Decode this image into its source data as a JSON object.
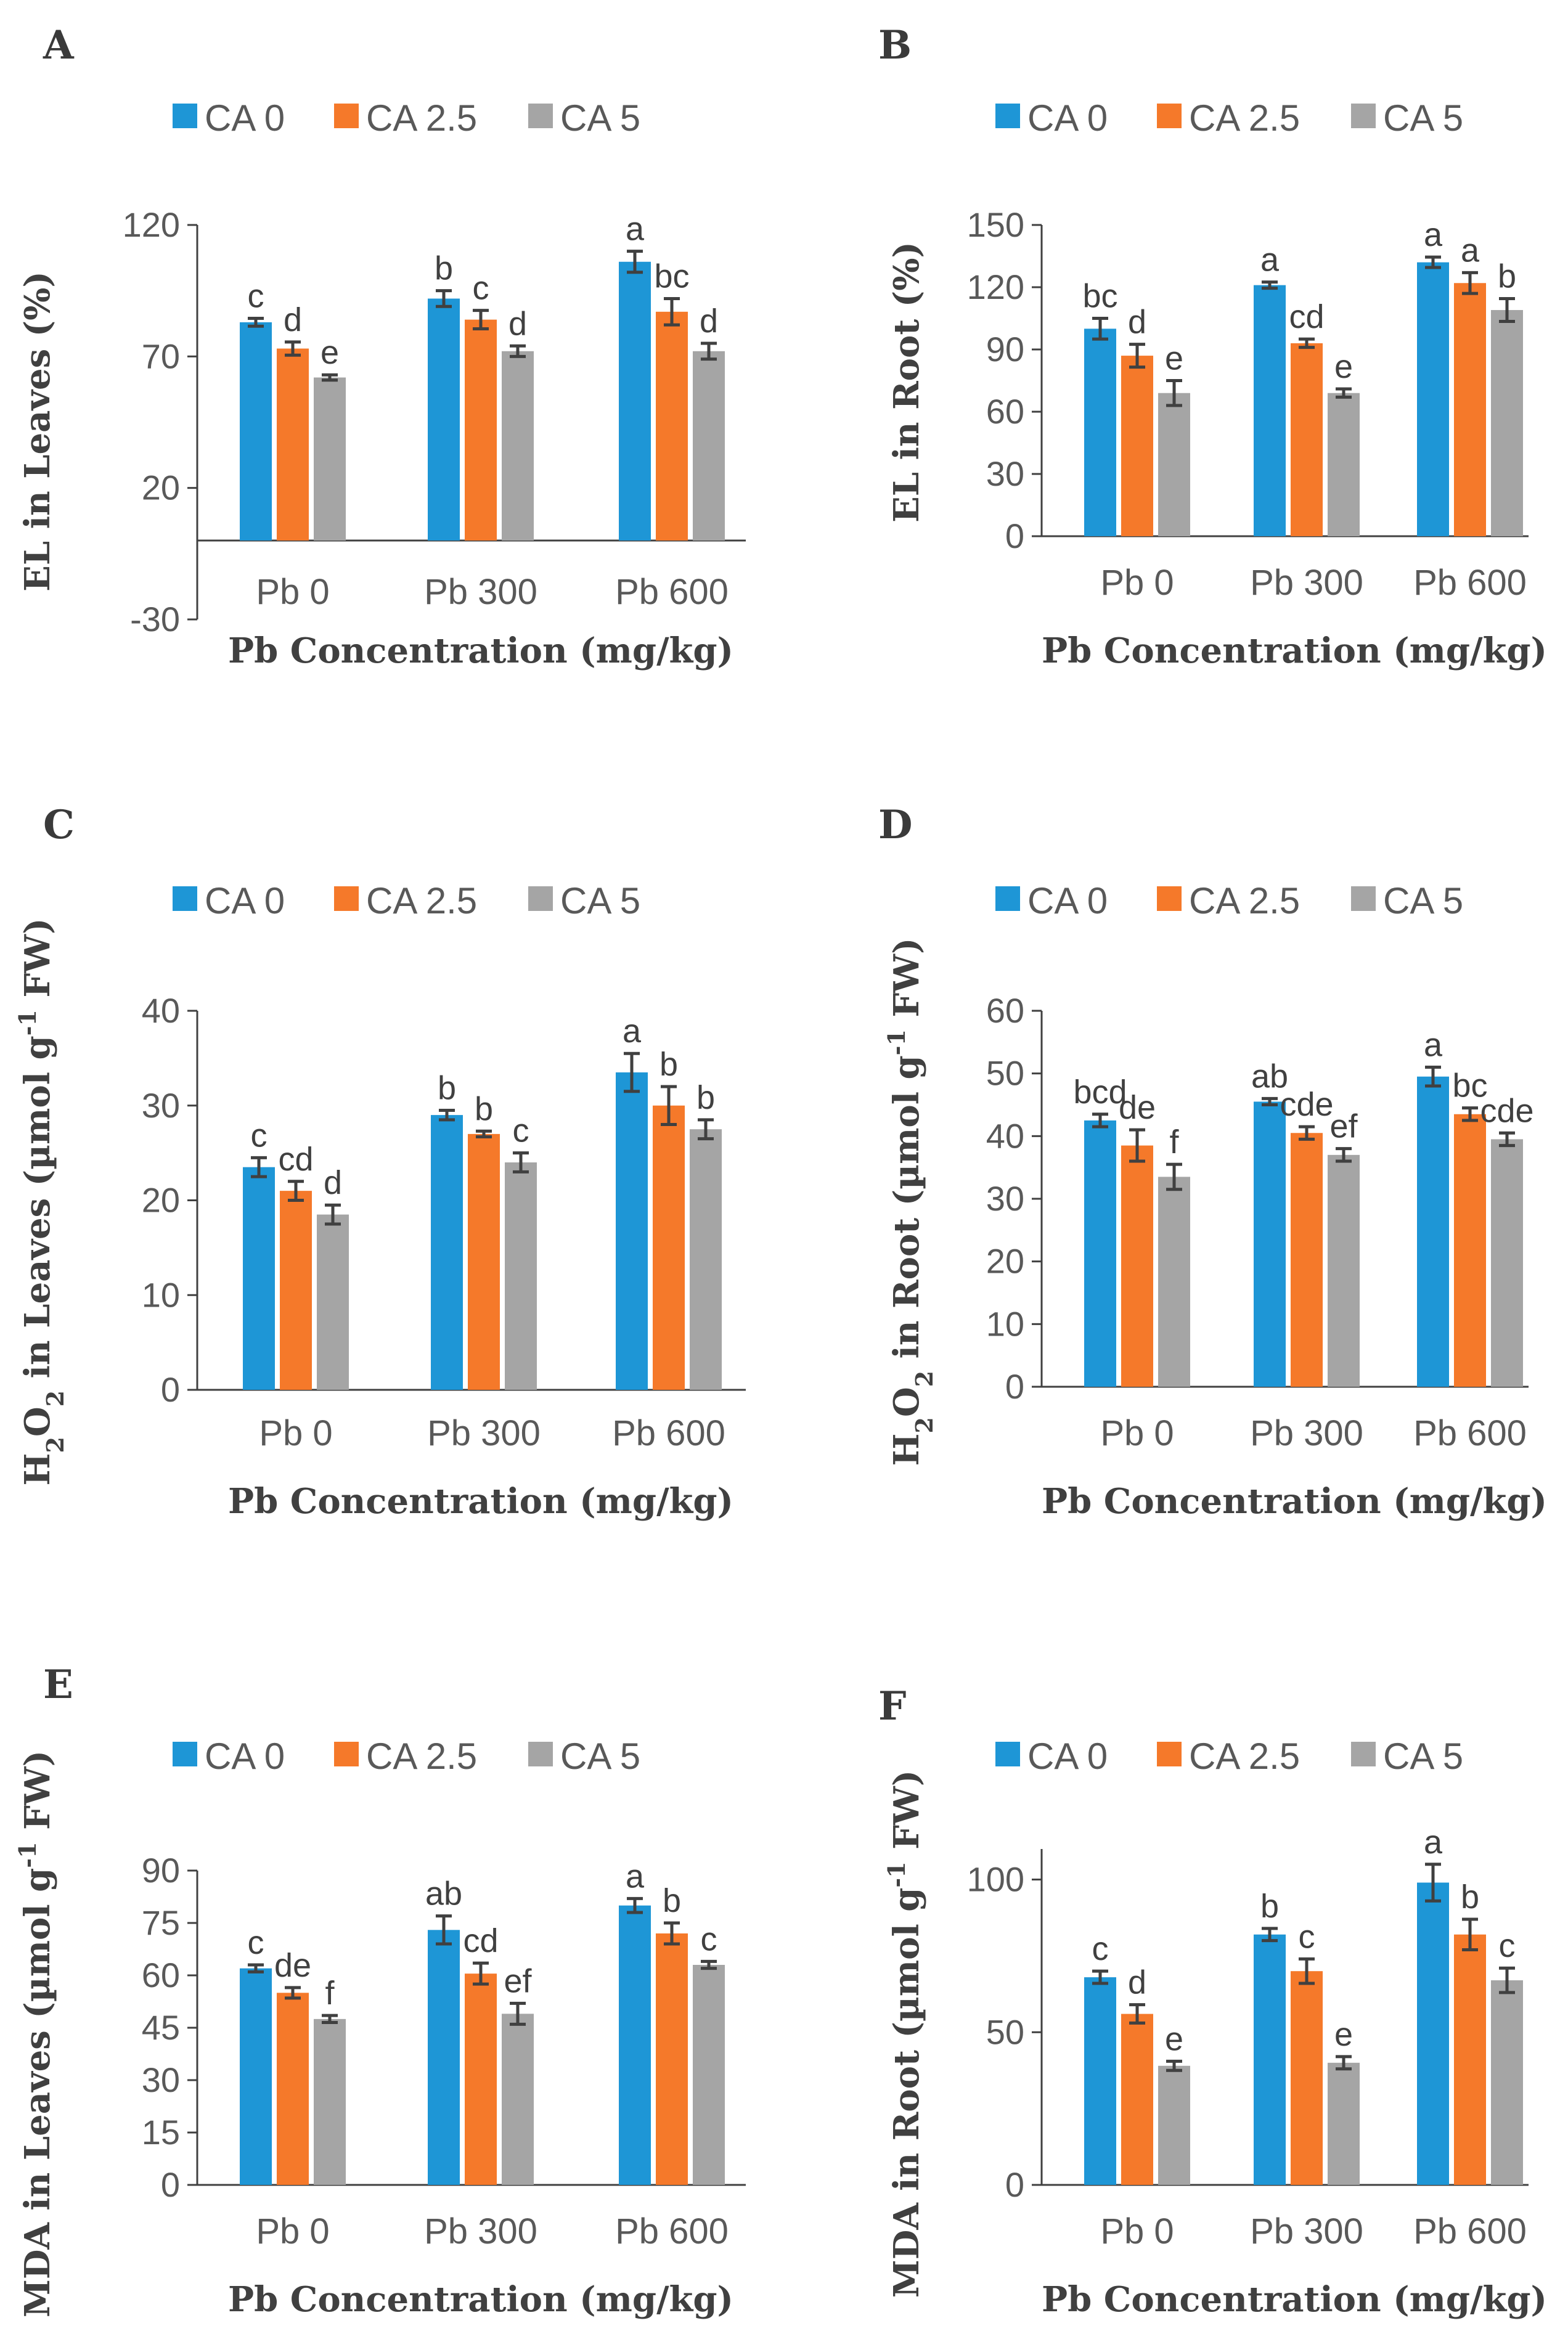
{
  "figure": {
    "colors": {
      "CA 0": "#1e96d6",
      "CA 2.5": "#f5792a",
      "CA 5": "#a5a5a5"
    },
    "x_title": "Pb Concentration (mg/kg)"
  },
  "chart_data": [
    {
      "id": "A",
      "letter": "A",
      "type": "bar",
      "ylabel_parts": [
        "EL in Leaves (%)"
      ],
      "xlabel": "Pb Concentration (mg/kg)",
      "categories": [
        "Pb 0",
        "Pb 300",
        "Pb 600"
      ],
      "legend": [
        "CA 0",
        "CA 2.5",
        "CA 5"
      ],
      "ylim": [
        -30,
        120
      ],
      "ticks": [
        -30,
        20,
        70,
        120
      ],
      "baseline": 0,
      "series": [
        {
          "name": "CA 0",
          "values": [
            83,
            92,
            106
          ],
          "errors": [
            1.5,
            3,
            4
          ],
          "sig": [
            "c",
            "b",
            "a"
          ]
        },
        {
          "name": "CA 2.5",
          "values": [
            73,
            84,
            87
          ],
          "errors": [
            2.5,
            3.5,
            5
          ],
          "sig": [
            "d",
            "c",
            "bc"
          ]
        },
        {
          "name": "CA 5",
          "values": [
            62,
            72,
            72
          ],
          "errors": [
            1,
            2,
            3
          ],
          "sig": [
            "e",
            "d",
            "d"
          ]
        }
      ]
    },
    {
      "id": "B",
      "letter": "B",
      "type": "bar",
      "ylabel_parts": [
        "EL in Root (%)"
      ],
      "xlabel": "Pb Concentration (mg/kg)",
      "categories": [
        "Pb 0",
        "Pb 300",
        "Pb 600"
      ],
      "legend": [
        "CA 0",
        "CA 2.5",
        "CA 5"
      ],
      "ylim": [
        0,
        150
      ],
      "ticks": [
        0,
        30,
        60,
        90,
        120,
        150
      ],
      "baseline": 0,
      "series": [
        {
          "name": "CA 0",
          "values": [
            100,
            121,
            132
          ],
          "errors": [
            5,
            1.5,
            2.5
          ],
          "sig": [
            "bc",
            "a",
            "a"
          ]
        },
        {
          "name": "CA 2.5",
          "values": [
            87,
            93,
            122
          ],
          "errors": [
            5.5,
            2,
            5
          ],
          "sig": [
            "d",
            "cd",
            "a"
          ]
        },
        {
          "name": "CA 5",
          "values": [
            69,
            69,
            109
          ],
          "errors": [
            6,
            2,
            5.5
          ],
          "sig": [
            "e",
            "e",
            "b"
          ]
        }
      ]
    },
    {
      "id": "C",
      "letter": "C",
      "type": "bar",
      "ylabel_parts": [
        "H",
        "2",
        "O",
        "2",
        " in Leaves (µmol g",
        "-1",
        " FW)"
      ],
      "xlabel": "Pb Concentration (mg/kg)",
      "categories": [
        "Pb 0",
        "Pb 300",
        "Pb 600"
      ],
      "legend": [
        "CA 0",
        "CA 2.5",
        "CA 5"
      ],
      "ylim": [
        0,
        40
      ],
      "ticks": [
        0,
        10,
        20,
        30,
        40
      ],
      "baseline": 0,
      "series": [
        {
          "name": "CA 0",
          "values": [
            23.5,
            29,
            33.5
          ],
          "errors": [
            1,
            0.5,
            2
          ],
          "sig": [
            "c",
            "b",
            "a"
          ]
        },
        {
          "name": "CA 2.5",
          "values": [
            21,
            27,
            30
          ],
          "errors": [
            1,
            0.3,
            2
          ],
          "sig": [
            "cd",
            "b",
            "b"
          ]
        },
        {
          "name": "CA 5",
          "values": [
            18.5,
            24,
            27.5
          ],
          "errors": [
            1,
            1,
            1
          ],
          "sig": [
            "d",
            "c",
            "b"
          ]
        }
      ]
    },
    {
      "id": "D",
      "letter": "D",
      "type": "bar",
      "ylabel_parts": [
        "H",
        "2",
        "O",
        "2",
        " in Root (µmol g",
        "-1",
        " FW)"
      ],
      "xlabel": "Pb Concentration (mg/kg)",
      "categories": [
        "Pb 0",
        "Pb 300",
        "Pb 600"
      ],
      "legend": [
        "CA 0",
        "CA 2.5",
        "CA 5"
      ],
      "ylim": [
        0,
        60
      ],
      "ticks": [
        0,
        10,
        20,
        30,
        40,
        50,
        60
      ],
      "baseline": 0,
      "series": [
        {
          "name": "CA 0",
          "values": [
            42.5,
            45.5,
            49.5
          ],
          "errors": [
            1,
            0.5,
            1.5
          ],
          "sig": [
            "bcd",
            "ab",
            "a"
          ]
        },
        {
          "name": "CA 2.5",
          "values": [
            38.5,
            40.5,
            43.5
          ],
          "errors": [
            2.5,
            1,
            1
          ],
          "sig": [
            "de",
            "cde",
            "bc"
          ]
        },
        {
          "name": "CA 5",
          "values": [
            33.5,
            37,
            39.5
          ],
          "errors": [
            2,
            1,
            1
          ],
          "sig": [
            "f",
            "ef",
            "cde"
          ]
        }
      ]
    },
    {
      "id": "E",
      "letter": "E",
      "type": "bar",
      "ylabel_parts": [
        "MDA in Leaves (µmol g",
        "-1",
        " FW)"
      ],
      "xlabel": "Pb Concentration (mg/kg)",
      "categories": [
        "Pb 0",
        "Pb 300",
        "Pb 600"
      ],
      "legend": [
        "CA 0",
        "CA 2.5",
        "CA 5"
      ],
      "ylim": [
        0,
        90
      ],
      "ticks": [
        0,
        15,
        30,
        45,
        60,
        75,
        90
      ],
      "baseline": 0,
      "series": [
        {
          "name": "CA 0",
          "values": [
            62,
            73,
            80
          ],
          "errors": [
            1,
            4,
            2
          ],
          "sig": [
            "c",
            "ab",
            "a"
          ]
        },
        {
          "name": "CA 2.5",
          "values": [
            55,
            60.5,
            72
          ],
          "errors": [
            1.5,
            3,
            3
          ],
          "sig": [
            "de",
            "cd",
            "b"
          ]
        },
        {
          "name": "CA 5",
          "values": [
            47.5,
            49,
            63
          ],
          "errors": [
            1,
            3,
            1
          ],
          "sig": [
            "f",
            "ef",
            "c"
          ]
        }
      ]
    },
    {
      "id": "F",
      "letter": "F",
      "type": "bar",
      "ylabel_parts": [
        "MDA in Root (µmol g",
        "-1",
        " FW)"
      ],
      "xlabel": "Pb Concentration (mg/kg)",
      "categories": [
        "Pb 0",
        "Pb 300",
        "Pb 600"
      ],
      "legend": [
        "CA 0",
        "CA 2.5",
        "CA 5"
      ],
      "ylim": [
        0,
        110
      ],
      "ticks": [
        0,
        50,
        100
      ],
      "baseline": 0,
      "series": [
        {
          "name": "CA 0",
          "values": [
            68,
            82,
            99
          ],
          "errors": [
            2,
            2,
            6
          ],
          "sig": [
            "c",
            "b",
            "a"
          ]
        },
        {
          "name": "CA 2.5",
          "values": [
            56,
            70,
            82
          ],
          "errors": [
            3,
            4,
            5
          ],
          "sig": [
            "d",
            "c",
            "b"
          ]
        },
        {
          "name": "CA 5",
          "values": [
            39,
            40,
            67
          ],
          "errors": [
            1.5,
            2,
            4
          ],
          "sig": [
            "e",
            "e",
            "c"
          ]
        }
      ]
    }
  ]
}
